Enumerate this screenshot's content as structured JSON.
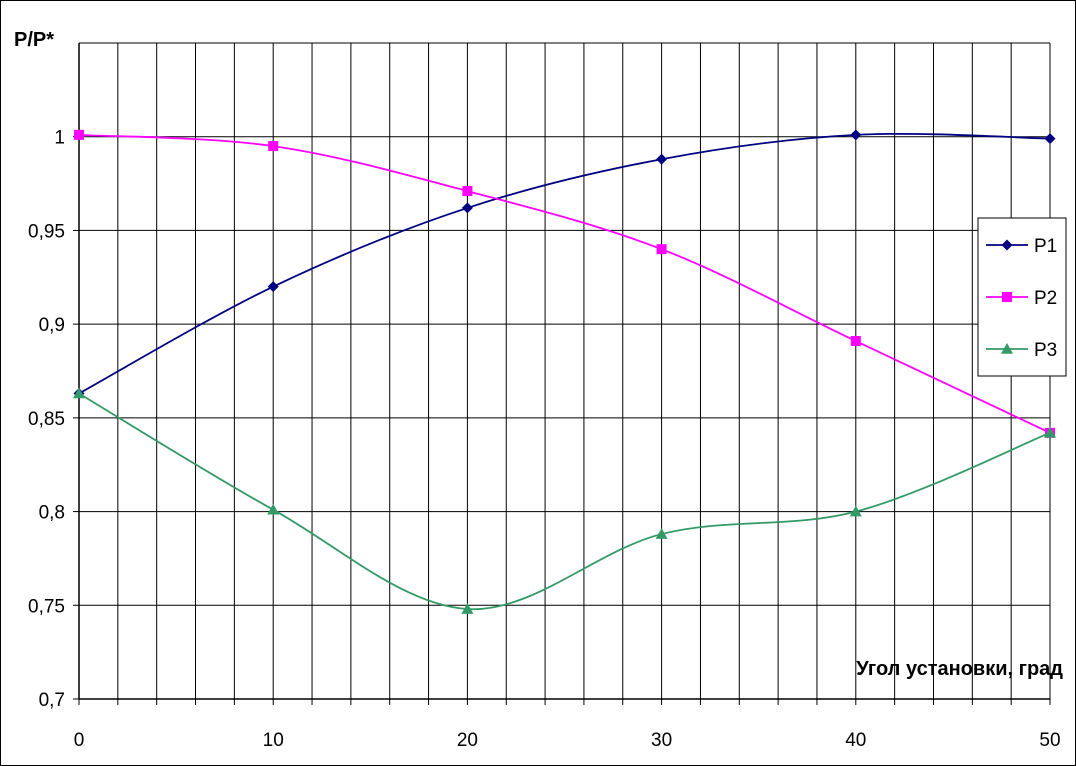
{
  "chart_data": {
    "type": "line",
    "ylabel": "P/P*",
    "xlabel": "Угол установки, град",
    "xlim": [
      0,
      50
    ],
    "ylim": [
      0.7,
      1.05
    ],
    "x_ticks": [
      0,
      10,
      20,
      30,
      40,
      50
    ],
    "x_tick_labels": [
      "0",
      "10",
      "20",
      "30",
      "40",
      "50"
    ],
    "y_ticks": [
      0.7,
      0.75,
      0.8,
      0.85,
      0.9,
      0.95,
      1
    ],
    "y_tick_labels": [
      "0,7",
      "0,75",
      "0,8",
      "0,85",
      "0,9",
      "0,95",
      "1"
    ],
    "x_minor_step": 2,
    "grid": true,
    "smoothed": true,
    "legend_position": "right",
    "x": [
      0,
      10,
      20,
      30,
      40,
      50
    ],
    "series": [
      {
        "name": "P1",
        "values": [
          0.863,
          0.92,
          0.962,
          0.988,
          1.001,
          0.999
        ],
        "color": "#000080",
        "marker": "diamond"
      },
      {
        "name": "P2",
        "values": [
          1.001,
          0.995,
          0.971,
          0.94,
          0.891,
          0.842
        ],
        "color": "#FF00FF",
        "marker": "square"
      },
      {
        "name": "P3",
        "values": [
          0.863,
          0.801,
          0.748,
          0.788,
          0.8,
          0.842
        ],
        "color": "#339966",
        "marker": "triangle"
      }
    ]
  }
}
